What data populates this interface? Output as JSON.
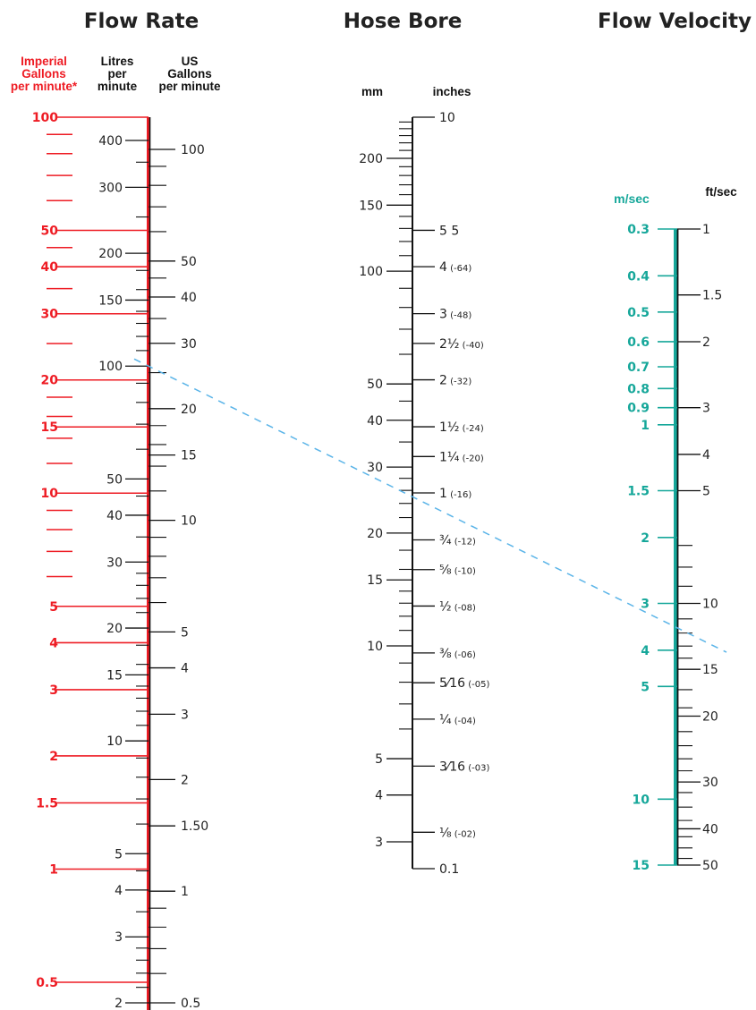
{
  "chart_data": {
    "type": "nomogram",
    "titles": {
      "flow_rate": "Flow Rate",
      "hose_bore": "Hose Bore",
      "flow_velocity": "Flow Velocity"
    },
    "colors": {
      "imperial": "#ee1c24",
      "velocity": "#16a79a",
      "scale": "#111111",
      "example_line": "#5ab4e8"
    },
    "scales": [
      {
        "key": "imperial_gpm",
        "header": [
          "Imperial",
          "Gallons",
          "per minute*"
        ],
        "unit": "Imperial Gallons per minute*",
        "range": [
          0.5,
          100
        ],
        "log": true,
        "labels": [
          "100",
          "50",
          "40",
          "30",
          "20",
          "15",
          "10",
          "5",
          "4",
          "3",
          "2",
          "1.5",
          "1",
          "0.5"
        ],
        "values": [
          100,
          50,
          40,
          30,
          20,
          15,
          10,
          5,
          4,
          3,
          2,
          1.5,
          1,
          0.5
        ],
        "minor": [
          90,
          80,
          70,
          60,
          45,
          35,
          25,
          18,
          16,
          14,
          12,
          9,
          8,
          7,
          6
        ]
      },
      {
        "key": "litres_pm",
        "header": [
          "Litres",
          "per",
          "minute"
        ],
        "unit": "Litres per minute",
        "range": [
          2,
          450
        ],
        "log": true,
        "labels": [
          "400",
          "300",
          "200",
          "150",
          "100",
          "50",
          "40",
          "30",
          "20",
          "15",
          "10",
          "5",
          "4",
          "3",
          "2"
        ],
        "values": [
          400,
          300,
          200,
          150,
          100,
          50,
          40,
          30,
          20,
          15,
          10,
          5,
          4,
          3,
          2
        ],
        "minor": [
          350,
          250,
          180,
          160,
          140,
          130,
          120,
          110,
          90,
          80,
          70,
          60,
          45,
          35,
          28,
          26,
          24,
          22,
          18,
          16,
          14,
          13,
          12,
          11,
          9,
          8,
          7,
          6,
          4.5,
          3.5,
          2.8,
          2.6,
          2.4,
          2.2
        ]
      },
      {
        "key": "us_gpm",
        "header": [
          "US",
          "Gallons",
          "per minute"
        ],
        "unit": "US Gallons per minute",
        "range": [
          0.5,
          120
        ],
        "log": true,
        "labels": [
          "100",
          "50",
          "40",
          "30",
          "20",
          "15",
          "10",
          "5",
          "4",
          "3",
          "2",
          "1.50",
          "1",
          "0.5"
        ],
        "values": [
          100,
          50,
          40,
          30,
          20,
          15,
          10,
          5,
          4,
          3,
          2,
          1.5,
          1,
          0.5
        ],
        "minor": [
          90,
          80,
          70,
          60,
          45,
          35,
          25,
          18,
          16,
          14,
          12,
          9,
          8,
          7,
          6,
          0.9,
          0.8,
          0.7,
          0.6
        ]
      },
      {
        "key": "bore_mm",
        "header": [
          "mm"
        ],
        "unit": "mm",
        "range": [
          2.54,
          254
        ],
        "log": true,
        "labels": [
          "200",
          "150",
          "100",
          "50",
          "40",
          "30",
          "20",
          "15",
          "10",
          "5",
          "4",
          "3"
        ],
        "values": [
          200,
          150,
          100,
          50,
          40,
          30,
          20,
          15,
          10,
          5,
          4,
          3
        ],
        "minor": [
          250,
          240,
          230,
          220,
          210,
          190,
          180,
          170,
          160,
          140,
          130,
          120,
          110,
          90,
          80,
          70,
          60,
          45,
          35,
          28,
          26,
          24,
          22,
          18,
          16,
          14,
          13,
          12,
          11,
          9,
          8,
          7,
          6
        ]
      },
      {
        "key": "bore_in",
        "header": [
          "inches"
        ],
        "unit": "inches",
        "range": [
          0.1,
          10
        ],
        "log": true,
        "labels": [
          "10",
          "5 5",
          "4 (-64)",
          "3 (-48)",
          "2½ (-40)",
          "2 (-32)",
          "1½ (-24)",
          "1¼ (-20)",
          "1 (-16)",
          "¾ (-12)",
          "⅝ (-10)",
          "½ (-08)",
          "⅜ (-06)",
          "5⁄16 (-05)",
          "¼ (-04)",
          "3⁄16 (-03)",
          "⅛ (-02)",
          "0.1"
        ],
        "values": [
          10,
          5,
          4,
          3,
          2.5,
          2,
          1.5,
          1.25,
          1,
          0.75,
          0.625,
          0.5,
          0.375,
          0.3125,
          0.25,
          0.1875,
          0.125,
          0.1
        ]
      },
      {
        "key": "vel_ms",
        "header": [
          "m/sec"
        ],
        "unit": "m/sec",
        "range": [
          0.3,
          15
        ],
        "log": true,
        "labels": [
          "0.3",
          "0.4",
          "0.5",
          "0.6",
          "0.7",
          "0.8",
          "0.9",
          "1",
          "1.5",
          "2",
          "3",
          "4",
          "5",
          "10",
          "15"
        ],
        "values": [
          0.3,
          0.4,
          0.5,
          0.6,
          0.7,
          0.8,
          0.9,
          1,
          1.5,
          2,
          3,
          4,
          5,
          10,
          15
        ]
      },
      {
        "key": "vel_fts",
        "header": [
          "ft/sec"
        ],
        "unit": "ft/sec",
        "range": [
          1,
          50
        ],
        "log": true,
        "labels": [
          "1",
          "1.5",
          "2",
          "3",
          "4",
          "5",
          "10",
          "15",
          "20",
          "30",
          "40",
          "50"
        ],
        "values": [
          1,
          1.5,
          2,
          3,
          4,
          5,
          10,
          15,
          20,
          30,
          40,
          50
        ],
        "minor": [
          7,
          8,
          9,
          11,
          12,
          13,
          14,
          17,
          19,
          22,
          24,
          26,
          28,
          32,
          35,
          38,
          42,
          45,
          48
        ]
      }
    ],
    "example_line": {
      "from": {
        "scale": "litres_pm",
        "value": 100
      },
      "through": {
        "scale": "bore_mm",
        "value": 25
      },
      "to": {
        "scale": "vel_ms",
        "value": 5
      }
    }
  }
}
